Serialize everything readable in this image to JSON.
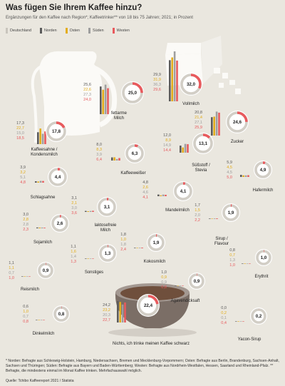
{
  "title": "Was fügen Sie Ihrem Kaffee hinzu?",
  "subtitle": "Ergänzungen für den Kaffee nach Region*; Kaffeetrinker** von 18 bis 75 Jahren; 2021; in Prozent",
  "colors": {
    "background": "#eae7df",
    "Deutschland": "#c9c5bd",
    "Norden": "#5b5b5b",
    "Osten": "#e3ad1c",
    "Süden": "#9e9e9e",
    "Westen": "#e85a5d",
    "ring_track": "#d2cec6"
  },
  "footnote": "* Norden: Befragte aus Schleswig-Holstein, Hamburg, Niedersachsen, Bremen und Mecklenburg-Vorpommern; Osten: Befragte aus Berlin, Brandenburg, Sachsen-Anhalt, Sachsen und Thüringen; Süden: Befragte aus Bayern und Baden-Württemberg; Westen: Befragte aus Nordrhein-Westfalen, Hessen, Saarland und Rheinland-Pfalz. ** Befragte, die mindestens einmal im Monat Kaffee trinken. Mehrfachauswahl möglich.",
  "source": "Quelle: Tchibo Kaffeereport 2021 / Statista",
  "chart_data": {
    "type": "bar",
    "title": "Was fügen Sie Ihrem Kaffee hinzu?",
    "unit": "Prozent",
    "legend": [
      "Deutschland",
      "Norden",
      "Osten",
      "Süden",
      "Westen"
    ],
    "legend_position": "top-left",
    "series_order": [
      "Norden",
      "Osten",
      "Süden",
      "Westen"
    ],
    "categories": [
      {
        "label": "Vollmilch",
        "deutschland": "32,0",
        "values": [
          "29,9",
          "31,9",
          "36,3",
          "29,6"
        ]
      },
      {
        "label": "fettarme Milch",
        "deutschland": "25,0",
        "values": [
          "25,6",
          "22,6",
          "27,3",
          "24,0"
        ]
      },
      {
        "label": "Zucker",
        "deutschland": "24,6",
        "values": [
          "20,8",
          "21,4",
          "27,1",
          "25,9"
        ]
      },
      {
        "label": "Kaffeesahne / Kondensmilch",
        "deutschland": "17,8",
        "values": [
          "17,3",
          "22,7",
          "15,0",
          "18,5"
        ]
      },
      {
        "label": "Süßstoff / Stevia",
        "deutschland": "13,1",
        "values": [
          "12,0",
          "8,9",
          "14,9",
          "14,4"
        ]
      },
      {
        "label": "Kaffeeweißer",
        "deutschland": "6,3",
        "values": [
          "8,0",
          "8,3",
          "3,9",
          "6,4"
        ]
      },
      {
        "label": "Hafermilch",
        "deutschland": "4,9",
        "values": [
          "5,9",
          "4,5",
          "4,5",
          "5,0"
        ]
      },
      {
        "label": "Schlagsahne",
        "deutschland": "4,4",
        "values": [
          "3,9",
          "3,2",
          "5,1",
          "4,8"
        ]
      },
      {
        "label": "Mandelmilch",
        "deutschland": "4,1",
        "values": [
          "4,8",
          "2,6",
          "4,6",
          "4,1"
        ]
      },
      {
        "label": "laktosefreie Milch",
        "deutschland": "3,1",
        "values": [
          "3,1",
          "2,1",
          "3,0",
          "3,6"
        ]
      },
      {
        "label": "Sirup / Flavour",
        "deutschland": "1,9",
        "values": [
          "1,7",
          "1,5",
          "2,0",
          "2,2"
        ]
      },
      {
        "label": "Sojamilch",
        "deutschland": "2,6",
        "values": [
          "3,0",
          "2,8",
          "2,8",
          "2,3"
        ]
      },
      {
        "label": "Kokosmilch",
        "deutschland": "1,9",
        "values": [
          "1,8",
          "1,0",
          "1,8",
          "2,4"
        ]
      },
      {
        "label": "Sonstiges",
        "deutschland": "1,3",
        "values": [
          "1,1",
          "1,6",
          "1,4",
          "1,3"
        ]
      },
      {
        "label": "Erythrit",
        "deutschland": "1,0",
        "values": [
          "0,8",
          "0,7",
          "1,3",
          "1,0"
        ]
      },
      {
        "label": "Reismilch",
        "deutschland": "0,9",
        "values": [
          "1,1",
          "1,1",
          "0,7",
          "1,0"
        ]
      },
      {
        "label": "Agavendicksaft",
        "deutschland": "0,9",
        "values": [
          "1,0",
          "0,9",
          "0,9",
          "0,8"
        ]
      },
      {
        "label": "Dinkelmilch",
        "deutschland": "0,8",
        "values": [
          "0,6",
          "1,0",
          "0,7",
          "0,8"
        ]
      },
      {
        "label": "Yacon-Sirup",
        "deutschland": "0,2",
        "values": [
          "0,0",
          "0,2",
          "0,1",
          "0,4"
        ]
      },
      {
        "label": "Nichts, ich trinke meinen Kaffee schwarz",
        "deutschland": "22,4",
        "values": [
          "24,2",
          "23,2",
          "20,3",
          "22,7"
        ]
      }
    ]
  }
}
